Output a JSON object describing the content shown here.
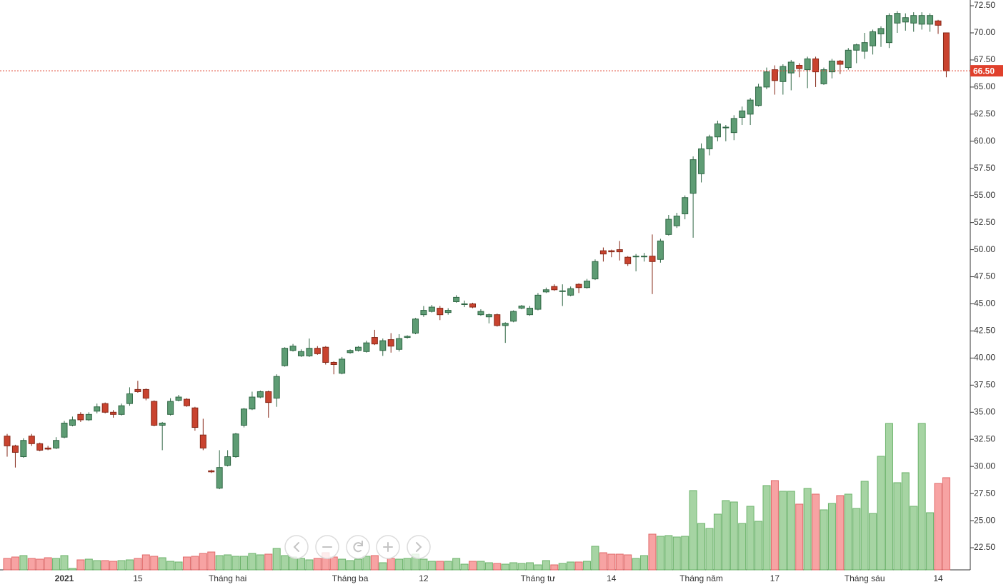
{
  "chart_data": {
    "type": "candlestick",
    "categories": [
      null,
      null,
      null,
      null,
      null,
      null,
      null,
      "2021",
      null,
      null,
      null,
      null,
      null,
      null,
      null,
      null,
      "15",
      null,
      null,
      null,
      null,
      null,
      null,
      null,
      null,
      null,
      null,
      "Tháng hai",
      null,
      null,
      null,
      null,
      null,
      null,
      null,
      null,
      null,
      null,
      null,
      null,
      null,
      null,
      "Tháng ba",
      null,
      null,
      null,
      null,
      null,
      null,
      null,
      null,
      "12",
      null,
      null,
      null,
      null,
      null,
      null,
      null,
      null,
      null,
      null,
      null,
      null,
      null,
      "Tháng tư",
      null,
      null,
      null,
      null,
      null,
      null,
      null,
      null,
      "14",
      null,
      null,
      null,
      null,
      null,
      null,
      null,
      null,
      null,
      null,
      "Tháng năm",
      null,
      null,
      null,
      null,
      null,
      null,
      null,
      null,
      "17",
      null,
      null,
      null,
      null,
      null,
      null,
      null,
      null,
      null,
      null,
      "Tháng sáu",
      null,
      null,
      null,
      null,
      null,
      null,
      null,
      null,
      "14",
      null
    ],
    "open": [
      32.8,
      31.9,
      30.9,
      32.8,
      32.1,
      31.7,
      31.7,
      32.7,
      33.8,
      34.8,
      34.3,
      35.1,
      35.8,
      35.0,
      34.8,
      35.8,
      37.1,
      37.1,
      36.0,
      33.8,
      34.8,
      36.1,
      36.2,
      35.4,
      32.9,
      29.6,
      28.0,
      30.1,
      30.9,
      33.8,
      35.3,
      36.4,
      36.9,
      36.3,
      39.3,
      40.7,
      40.2,
      40.2,
      40.9,
      41.0,
      39.6,
      38.6,
      40.5,
      40.7,
      40.6,
      41.9,
      40.7,
      41.7,
      40.8,
      41.9,
      42.3,
      44.0,
      44.3,
      44.6,
      44.2,
      45.2,
      45.0,
      45.0,
      44.0,
      43.8,
      44.0,
      43.0,
      43.4,
      44.6,
      44.0,
      44.5,
      46.1,
      46.6,
      46.2,
      45.8,
      46.8,
      46.5,
      47.3,
      49.9,
      49.9,
      50.0,
      49.3,
      49.4,
      49.4,
      49.4,
      49.1,
      51.4,
      52.2,
      53.3,
      55.2,
      57.0,
      59.3,
      60.4,
      61.3,
      60.8,
      62.2,
      62.5,
      63.3,
      65.0,
      66.6,
      65.5,
      66.3,
      67.0,
      66.6,
      67.6,
      65.3,
      66.4,
      67.4,
      66.8,
      68.4,
      68.3,
      68.8,
      69.9,
      69.1,
      70.9,
      71.0,
      70.9,
      70.8,
      70.8,
      71.1,
      70.0
    ],
    "high": [
      33.0,
      32.0,
      32.6,
      33.0,
      32.2,
      31.9,
      32.7,
      34.2,
      34.6,
      35.0,
      35.0,
      35.8,
      35.9,
      35.2,
      35.8,
      37.3,
      37.9,
      37.2,
      36.1,
      34.1,
      36.3,
      36.6,
      36.3,
      35.5,
      34.4,
      29.7,
      31.5,
      31.5,
      33.1,
      35.4,
      36.9,
      37.0,
      37.0,
      38.5,
      41.0,
      41.3,
      40.8,
      41.8,
      41.1,
      41.1,
      39.7,
      40.1,
      40.8,
      41.1,
      41.6,
      42.6,
      41.8,
      42.3,
      42.2,
      42.1,
      43.7,
      44.8,
      44.9,
      44.8,
      44.6,
      45.8,
      45.3,
      45.1,
      44.5,
      44.1,
      44.1,
      43.3,
      44.4,
      44.9,
      44.8,
      46.0,
      46.5,
      46.8,
      46.8,
      46.6,
      46.9,
      47.3,
      49.1,
      50.2,
      50.0,
      50.8,
      49.4,
      49.6,
      49.7,
      51.4,
      51.0,
      53.2,
      53.4,
      55.0,
      58.6,
      59.8,
      60.6,
      61.9,
      61.5,
      62.4,
      63.2,
      64.0,
      65.3,
      66.8,
      67.0,
      67.1,
      67.5,
      67.2,
      67.8,
      67.8,
      66.8,
      67.6,
      67.5,
      68.6,
      69.0,
      70.0,
      70.3,
      70.6,
      71.8,
      72.0,
      71.8,
      71.9,
      71.9,
      71.8,
      71.2,
      70.0
    ],
    "low": [
      30.9,
      29.9,
      30.8,
      31.9,
      31.4,
      31.5,
      31.6,
      32.6,
      33.7,
      34.1,
      34.2,
      34.9,
      34.9,
      34.5,
      34.7,
      35.6,
      36.8,
      36.1,
      33.7,
      31.5,
      34.7,
      36.0,
      35.5,
      33.3,
      31.5,
      29.4,
      27.9,
      30.0,
      30.8,
      33.6,
      35.2,
      36.3,
      34.5,
      35.5,
      39.2,
      40.6,
      40.1,
      40.1,
      40.3,
      39.4,
      38.5,
      38.5,
      40.4,
      40.6,
      40.5,
      41.2,
      40.2,
      40.5,
      40.6,
      41.8,
      42.2,
      43.8,
      44.2,
      43.5,
      44.0,
      45.1,
      44.7,
      44.6,
      43.9,
      43.2,
      42.9,
      41.4,
      43.3,
      44.5,
      43.9,
      44.4,
      46.0,
      46.2,
      44.8,
      45.7,
      46.0,
      46.4,
      47.2,
      48.9,
      49.3,
      49.0,
      48.5,
      48.0,
      48.9,
      45.9,
      48.8,
      51.3,
      52.0,
      52.8,
      51.1,
      56.2,
      58.7,
      60.0,
      60.0,
      60.1,
      61.5,
      61.5,
      63.2,
      64.8,
      64.3,
      64.3,
      64.7,
      65.9,
      64.9,
      65.0,
      65.2,
      65.8,
      66.2,
      66.6,
      67.2,
      67.6,
      68.0,
      68.7,
      68.6,
      70.0,
      70.2,
      70.1,
      70.3,
      70.1,
      69.9,
      65.9
    ],
    "close": [
      31.9,
      31.3,
      32.4,
      32.1,
      31.5,
      31.6,
      32.4,
      34.0,
      34.3,
      34.3,
      34.8,
      35.5,
      35.0,
      34.8,
      35.6,
      36.7,
      36.9,
      36.3,
      33.8,
      34.0,
      36.0,
      36.4,
      35.6,
      33.6,
      31.7,
      29.5,
      29.9,
      30.9,
      33.0,
      35.3,
      36.4,
      36.9,
      35.9,
      38.3,
      40.9,
      41.1,
      40.6,
      40.9,
      40.4,
      39.6,
      39.4,
      39.9,
      40.7,
      41.0,
      41.4,
      41.3,
      41.6,
      41.1,
      41.8,
      42.0,
      43.6,
      44.4,
      44.7,
      44.0,
      44.4,
      45.6,
      45.0,
      44.7,
      44.3,
      44.0,
      43.0,
      43.2,
      44.3,
      44.8,
      44.6,
      45.8,
      46.3,
      46.3,
      46.2,
      46.4,
      46.5,
      47.1,
      48.9,
      49.6,
      49.8,
      49.8,
      48.7,
      49.4,
      49.4,
      48.9,
      50.8,
      52.8,
      53.1,
      54.8,
      58.3,
      59.3,
      60.4,
      61.6,
      61.3,
      62.1,
      62.8,
      63.8,
      65.0,
      66.4,
      65.6,
      66.9,
      67.3,
      66.7,
      67.6,
      66.4,
      66.6,
      67.4,
      67.1,
      68.4,
      68.9,
      69.1,
      70.1,
      70.4,
      71.6,
      71.8,
      71.4,
      71.6,
      71.6,
      71.6,
      70.7,
      66.5
    ],
    "volume": [
      16,
      18,
      20,
      16,
      15,
      17,
      16,
      20,
      2,
      14,
      15,
      13,
      13,
      12,
      13,
      14,
      16,
      21,
      19,
      17,
      12,
      11,
      18,
      19,
      23,
      25,
      20,
      21,
      19,
      19,
      23,
      21,
      22,
      30,
      20,
      18,
      16,
      14,
      16,
      24,
      18,
      15,
      13,
      15,
      19,
      20,
      10,
      16,
      15,
      16,
      22,
      15,
      12,
      12,
      12,
      16,
      8,
      12,
      12,
      10,
      9,
      8,
      10,
      9,
      10,
      7,
      13,
      7,
      9,
      11,
      11,
      12,
      33,
      24,
      22,
      22,
      21,
      16,
      20,
      50,
      47,
      48,
      46,
      47,
      111,
      65,
      58,
      78,
      97,
      95,
      65,
      89,
      68,
      118,
      125,
      110,
      110,
      92,
      114,
      106,
      84,
      93,
      104,
      106,
      86,
      124,
      79,
      159,
      205,
      122,
      136,
      89,
      205,
      80,
      121,
      129
    ],
    "ylim": [
      20.46,
      73.03
    ],
    "yticks": [
      {
        "value": 22.5,
        "label": "22.50"
      },
      {
        "value": 25,
        "label": "25.00"
      },
      {
        "value": 27.5,
        "label": "27.50"
      },
      {
        "value": 30,
        "label": "30.00"
      },
      {
        "value": 32.5,
        "label": "32.50"
      },
      {
        "value": 35,
        "label": "35.00"
      },
      {
        "value": 37.5,
        "label": "37.50"
      },
      {
        "value": 40,
        "label": "40.00"
      },
      {
        "value": 42.5,
        "label": "42.50"
      },
      {
        "value": 45,
        "label": "45.00"
      },
      {
        "value": 47.5,
        "label": "47.50"
      },
      {
        "value": 50,
        "label": "50.00"
      },
      {
        "value": 52.5,
        "label": "52.50"
      },
      {
        "value": 55,
        "label": "55.00"
      },
      {
        "value": 57.5,
        "label": "57.50"
      },
      {
        "value": 60,
        "label": "60.00"
      },
      {
        "value": 62.5,
        "label": "62.50"
      },
      {
        "value": 65,
        "label": "65.00"
      },
      {
        "value": 67.5,
        "label": "67.50"
      },
      {
        "value": 70,
        "label": "70.00"
      },
      {
        "value": 72.5,
        "label": "72.50"
      }
    ],
    "last_price": {
      "value": 66.5,
      "label": "66.50"
    },
    "up_color": "#5e9c74",
    "up_border": "#2f6644",
    "down_color": "#c9432f",
    "down_border": "#862818",
    "volume_up_color": "#a6d4a3",
    "volume_up_border": "#6cb36b",
    "volume_down_color": "#f7a3a3",
    "volume_down_border": "#e06a6a",
    "last_price_color": "#e0402c",
    "grid": false
  }
}
